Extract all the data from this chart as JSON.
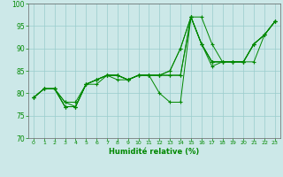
{
  "title": "",
  "xlabel": "Humidité relative (%)",
  "ylabel": "",
  "xlim": [
    -0.5,
    23.5
  ],
  "ylim": [
    70,
    100
  ],
  "yticks": [
    70,
    75,
    80,
    85,
    90,
    95,
    100
  ],
  "xticks": [
    0,
    1,
    2,
    3,
    4,
    5,
    6,
    7,
    8,
    9,
    10,
    11,
    12,
    13,
    14,
    15,
    16,
    17,
    18,
    19,
    20,
    21,
    22,
    23
  ],
  "bg_color": "#cce8e8",
  "grid_color": "#99cccc",
  "line_color": "#008800",
  "series": [
    {
      "x": [
        0,
        1,
        2,
        3,
        4,
        5,
        6,
        7,
        8,
        9,
        10,
        11,
        12,
        13,
        14,
        15,
        16,
        17,
        18,
        19,
        20,
        21,
        22,
        23
      ],
      "y": [
        79,
        81,
        81,
        77,
        77,
        82,
        82,
        84,
        83,
        83,
        84,
        84,
        80,
        78,
        78,
        97,
        91,
        86,
        87,
        87,
        87,
        87,
        93,
        96
      ]
    },
    {
      "x": [
        0,
        1,
        2,
        3,
        4,
        5,
        6,
        7,
        8,
        9,
        10,
        11,
        12,
        13,
        14,
        15,
        16,
        17,
        18,
        19,
        20,
        21,
        22,
        23
      ],
      "y": [
        79,
        81,
        81,
        77,
        77,
        82,
        83,
        84,
        84,
        83,
        84,
        84,
        84,
        84,
        84,
        97,
        91,
        87,
        87,
        87,
        87,
        91,
        93,
        96
      ]
    },
    {
      "x": [
        0,
        1,
        2,
        3,
        4,
        5,
        6,
        7,
        8,
        9,
        10,
        11,
        12,
        13,
        14,
        15,
        16,
        17,
        18,
        19,
        20,
        21,
        22,
        23
      ],
      "y": [
        79,
        81,
        81,
        78,
        77,
        82,
        83,
        84,
        84,
        83,
        84,
        84,
        84,
        85,
        90,
        97,
        91,
        87,
        87,
        87,
        87,
        91,
        93,
        96
      ]
    },
    {
      "x": [
        0,
        1,
        2,
        3,
        4,
        5,
        6,
        7,
        8,
        9,
        10,
        11,
        12,
        13,
        14,
        15,
        16,
        17,
        18,
        19,
        20,
        21,
        22,
        23
      ],
      "y": [
        79,
        81,
        81,
        78,
        78,
        82,
        83,
        84,
        84,
        83,
        84,
        84,
        84,
        85,
        90,
        97,
        91,
        87,
        87,
        87,
        87,
        91,
        93,
        96
      ]
    },
    {
      "x": [
        0,
        1,
        2,
        3,
        4,
        5,
        6,
        7,
        8,
        9,
        10,
        11,
        12,
        13,
        14,
        15,
        16,
        17,
        18,
        19,
        20,
        21,
        22,
        23
      ],
      "y": [
        79,
        81,
        81,
        77,
        77,
        82,
        83,
        84,
        84,
        83,
        84,
        84,
        84,
        84,
        84,
        97,
        97,
        91,
        87,
        87,
        87,
        91,
        93,
        96
      ]
    }
  ]
}
